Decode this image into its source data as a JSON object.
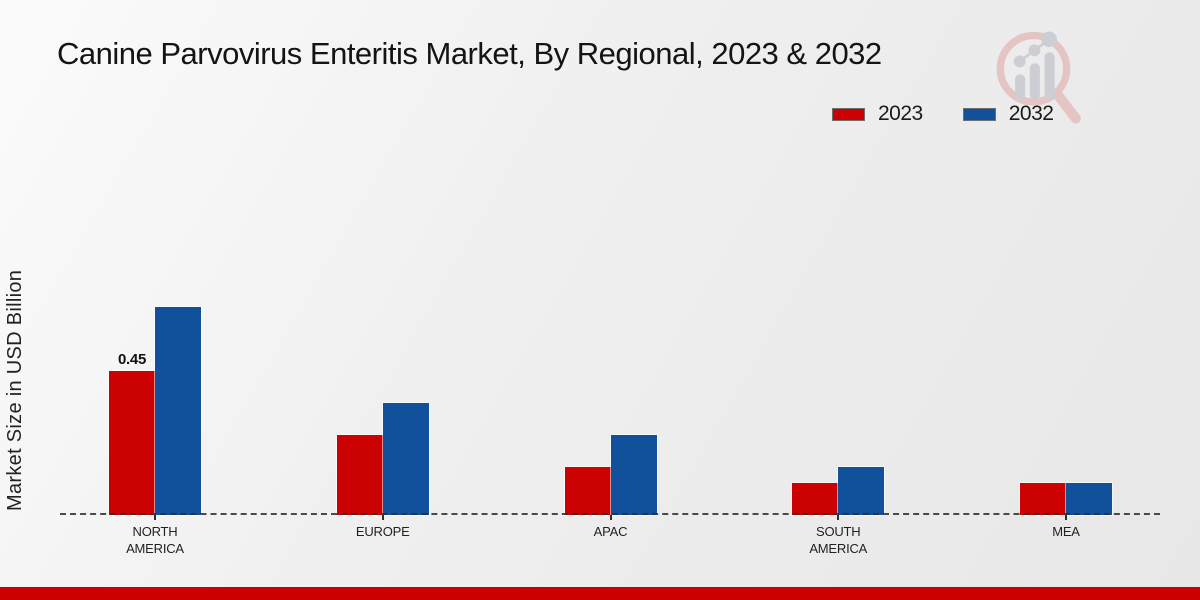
{
  "chart_data": {
    "type": "bar",
    "title": "Canine Parvovirus Enteritis Market, By Regional, 2023 & 2032",
    "ylabel": "Market Size in USD Billion",
    "xlabel": "",
    "categories": [
      "NORTH AMERICA",
      "EUROPE",
      "APAC",
      "SOUTH AMERICA",
      "MEA"
    ],
    "series": [
      {
        "name": "2023",
        "color": "#cc0202",
        "values": [
          0.45,
          0.25,
          0.15,
          0.1,
          0.1
        ],
        "value_labels": [
          "0.45",
          "",
          "",
          "",
          ""
        ]
      },
      {
        "name": "2032",
        "color": "#11519c",
        "values": [
          0.65,
          0.35,
          0.25,
          0.15,
          0.1
        ]
      }
    ],
    "ylim": [
      0,
      0.72
    ],
    "grid": false,
    "legend_position": "top-right",
    "baseline_style": "dashed",
    "y_axis_ticks_visible": false
  },
  "watermark": {
    "name": "magnifier-bar-chart-logo",
    "ring_color": "#e4bebe",
    "bars_color": "#c7cad0"
  },
  "footer": {
    "accent_color": "#cc0000"
  }
}
